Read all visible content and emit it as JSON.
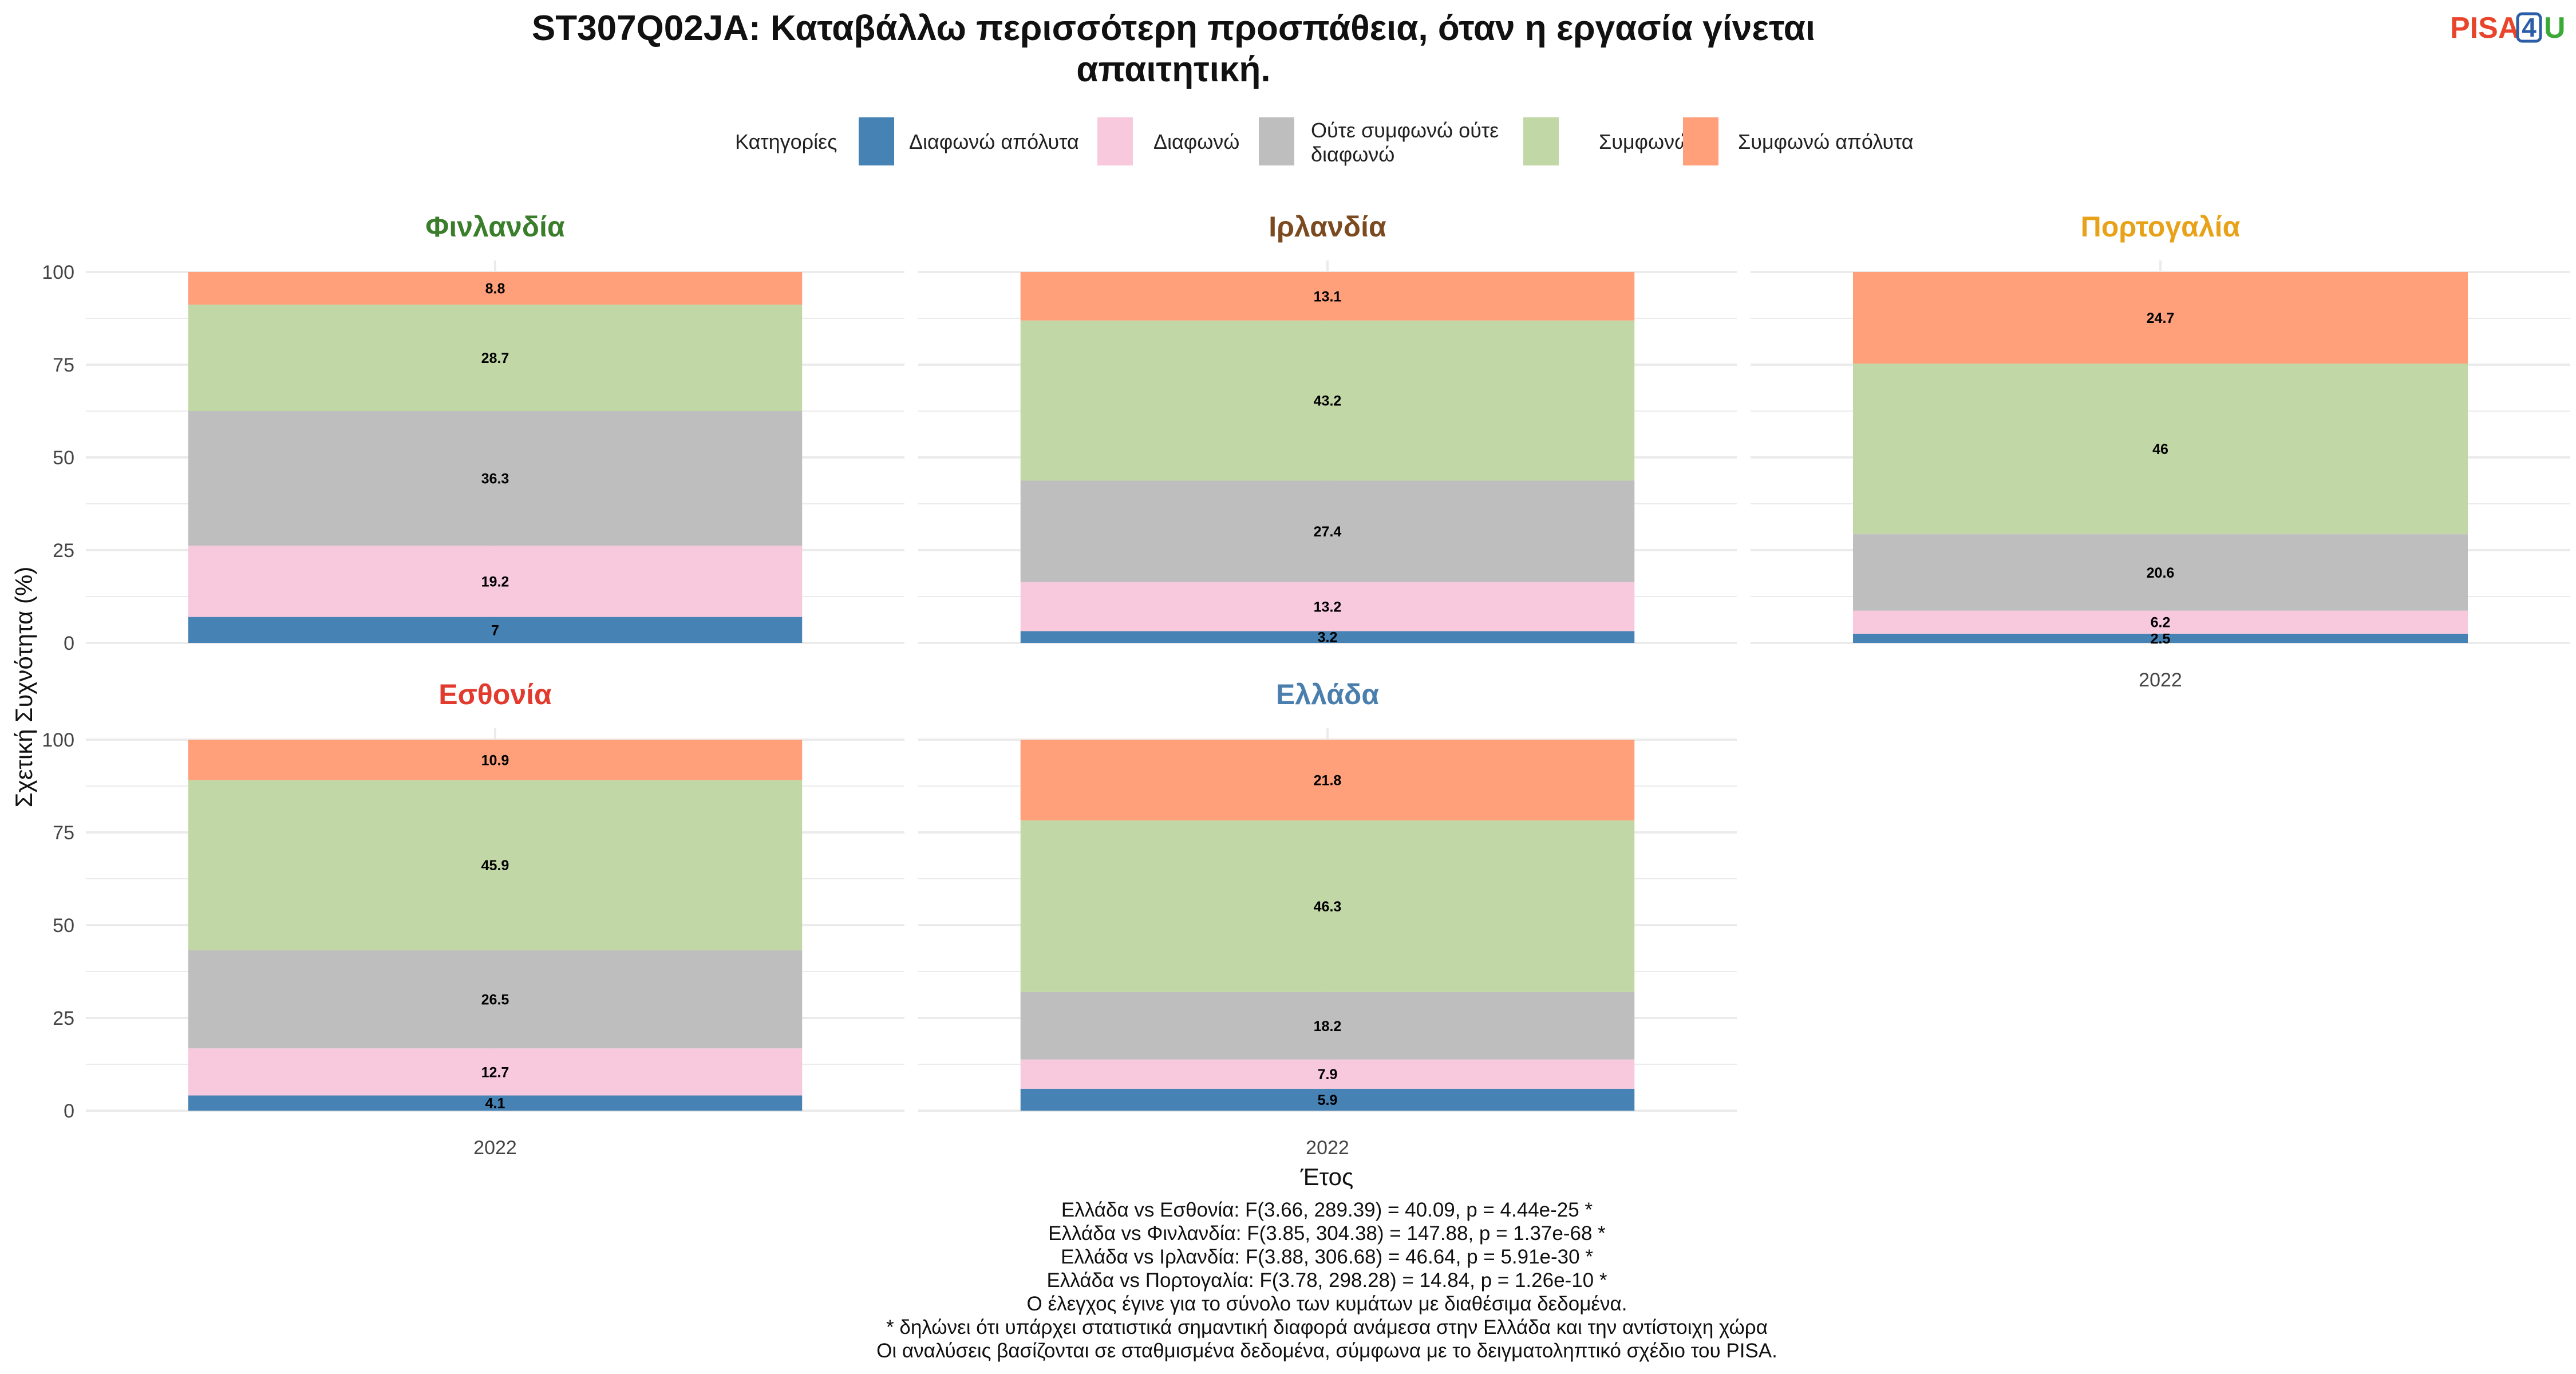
{
  "chart_data": {
    "type": "bar",
    "stacked": true,
    "title_lines": [
      "ST307Q02JA: Καταβάλλω περισσότερη προσπάθεια, όταν η εργασία γίνεται",
      "απαιτητική."
    ],
    "legend_title": "Κατηγορίες",
    "legend_position": "top",
    "grid": true,
    "ylabel": "Σχετική Συχνότητα (%)",
    "xlabel": "Έτος",
    "ylim": [
      0,
      100
    ],
    "y_ticks": [
      "0",
      "25",
      "50",
      "75",
      "100"
    ],
    "categories": [
      "2022"
    ],
    "series_names": [
      {
        "name": "Διαφωνώ απόλυτα",
        "color": "#4682b4"
      },
      {
        "name": "Διαφωνώ",
        "color": "#f8c8dc"
      },
      {
        "name_lines": [
          "Ούτε συμφωνώ ούτε",
          "διαφωνώ"
        ],
        "color": "#bebebe"
      },
      {
        "name": "Συμφωνώ",
        "color": "#c2d7a6"
      },
      {
        "name": "Συμφωνώ απόλυτα",
        "color": "#ffa07a"
      }
    ],
    "panels": [
      {
        "country": "Φινλανδία",
        "color": "#3a7d2a",
        "year": "2022",
        "values": [
          7,
          19.2,
          36.3,
          28.7,
          8.8
        ],
        "labels": [
          "7",
          "19.2",
          "36.3",
          "28.7",
          "8.8"
        ]
      },
      {
        "country": "Ιρλανδία",
        "color": "#7b4a1f",
        "year": "2022",
        "values": [
          3.2,
          13.2,
          27.4,
          43.2,
          13.1
        ],
        "labels": [
          "3.2",
          "13.2",
          "27.4",
          "43.2",
          "13.1"
        ]
      },
      {
        "country": "Πορτογαλία",
        "color": "#e8a21a",
        "year": "2022",
        "values": [
          2.5,
          6.2,
          20.6,
          46,
          24.7
        ],
        "labels": [
          "2.5",
          "6.2",
          "20.6",
          "46",
          "24.7"
        ]
      },
      {
        "country": "Εσθονία",
        "color": "#e23b2e",
        "year": "2022",
        "values": [
          4.1,
          12.7,
          26.5,
          45.9,
          10.9
        ],
        "labels": [
          "4.1",
          "12.7",
          "26.5",
          "45.9",
          "10.9"
        ]
      },
      {
        "country": "Ελλάδα",
        "color": "#4a7fad",
        "year": "2022",
        "values": [
          5.9,
          7.9,
          18.2,
          46.3,
          21.8
        ],
        "labels": [
          "5.9",
          "7.9",
          "18.2",
          "46.3",
          "21.8"
        ]
      }
    ],
    "notes": [
      "Ελλάδα vs Εσθονία: F(3.66, 289.39) = 40.09, p = 4.44e-25 *",
      "Ελλάδα vs Φινλανδία: F(3.85, 304.38) = 147.88, p = 1.37e-68 *",
      "Ελλάδα vs Ιρλανδία: F(3.88, 306.68) = 46.64, p = 5.91e-30 *",
      "Ελλάδα vs Πορτογαλία: F(3.78, 298.28) = 14.84, p = 1.26e-10 *",
      "Ο έλεγχος έγινε για το σύνολο των κυμάτων με διαθέσιμα δεδομένα.",
      "* δηλώνει ότι υπάρχει στατιστικά σημαντική διαφορά ανάμεσα στην Ελλάδα και την αντίστοιχη χώρα",
      "Οι αναλύσεις βασίζονται σε σταθμισμένα δεδομένα, σύμφωνα με το δειγματοληπτικό σχέδιο του PISA."
    ]
  },
  "logo": {
    "part1": "PISA",
    "part2": "4",
    "part3": "U"
  }
}
